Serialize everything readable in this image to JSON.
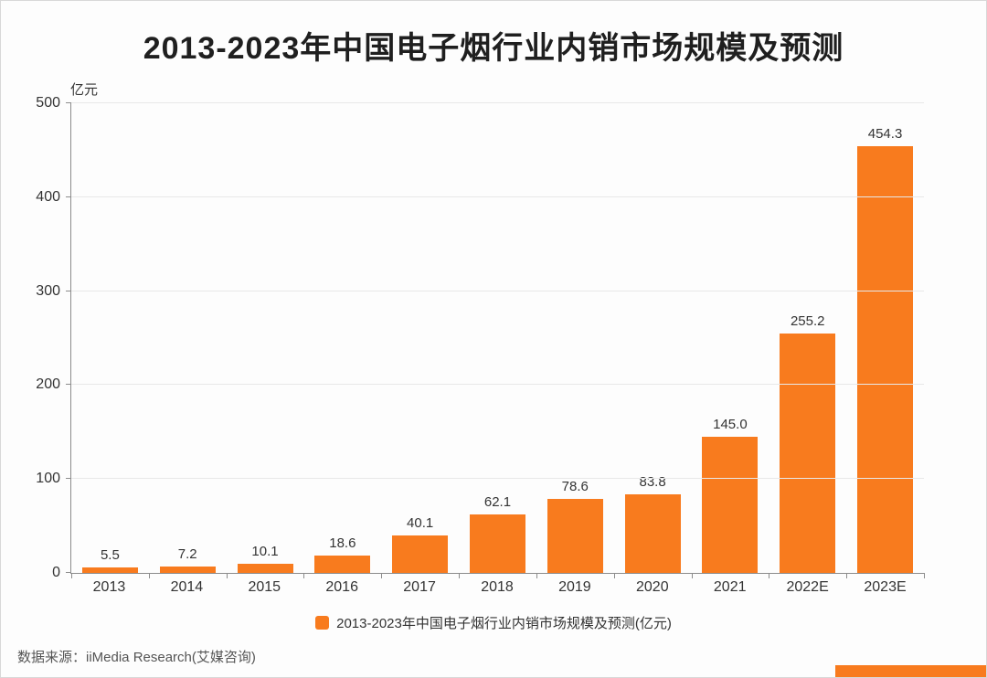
{
  "title": "2013-2023年中国电子烟行业内销市场规模及预测",
  "y_unit": "亿元",
  "legend": "2013-2023年中国电子烟行业内销市场规模及预测(亿元)",
  "source": "数据来源：iiMedia Research(艾媒咨询)",
  "colors": {
    "accent": "#f87b1e",
    "gridline": "#e8e8e8",
    "axis": "#8c8c8c",
    "text": "#333333"
  },
  "chart_data": {
    "type": "bar",
    "categories": [
      "2013",
      "2014",
      "2015",
      "2016",
      "2017",
      "2018",
      "2019",
      "2020",
      "2021",
      "2022E",
      "2023E"
    ],
    "values": [
      5.5,
      7.2,
      10.1,
      18.6,
      40.1,
      62.1,
      78.6,
      83.8,
      145.0,
      255.2,
      454.3
    ],
    "value_labels": [
      "5.5",
      "7.2",
      "10.1",
      "18.6",
      "40.1",
      "62.1",
      "78.6",
      "83.8",
      "145.0",
      "255.2",
      "454.3"
    ],
    "title": "2013-2023年中国电子烟行业内销市场规模及预测",
    "xlabel": "",
    "ylabel": "亿元",
    "ylim": [
      0,
      500
    ],
    "yticks": [
      0,
      100,
      200,
      300,
      400,
      500
    ],
    "grid": true,
    "legend_position": "bottom"
  }
}
